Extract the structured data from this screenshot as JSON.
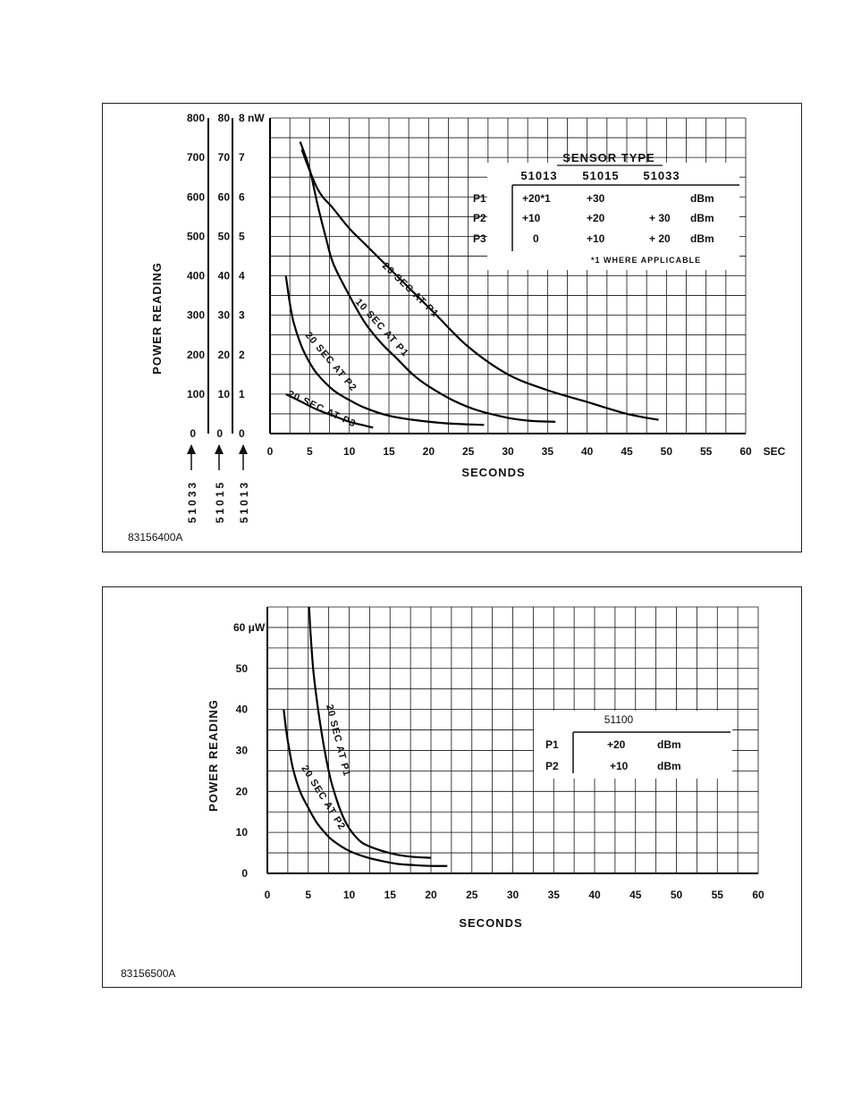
{
  "figures": [
    {
      "figure_id": "83156400A",
      "table": {
        "title": "SENSOR TYPE",
        "columns": [
          "51013",
          "51015",
          "51033"
        ],
        "rows": [
          {
            "label": "P1",
            "values": [
              "+20*1",
              "+30",
              ""
            ],
            "unit": "dBm"
          },
          {
            "label": "P2",
            "values": [
              "+10",
              "+20",
              "+ 30"
            ],
            "unit": "dBm"
          },
          {
            "label": "P3",
            "values": [
              "0",
              "+10",
              "+ 20"
            ],
            "unit": "dBm"
          }
        ],
        "footnote": "*1 WHERE APPLICABLE"
      }
    },
    {
      "figure_id": "83156500A",
      "table": {
        "title": "51100",
        "rows": [
          {
            "label": "P1",
            "value": "+20",
            "unit": "dBm"
          },
          {
            "label": "P2",
            "value": "+10",
            "unit": "dBm"
          }
        ]
      }
    }
  ],
  "chart_data": [
    {
      "type": "line",
      "xlabel": "SECONDS",
      "ylabel": "POWER READING",
      "x_unit_label": "SEC",
      "xlim": [
        0,
        60
      ],
      "ylim": [
        0,
        8
      ],
      "x_ticks": [
        "0",
        "5",
        "10",
        "15",
        "20",
        "25",
        "30",
        "35",
        "40",
        "45",
        "50",
        "55",
        "60"
      ],
      "y_scales": [
        {
          "sensor": "51033",
          "ticks": [
            "0",
            "100",
            "200",
            "300",
            "400",
            "500",
            "600",
            "700",
            "800"
          ]
        },
        {
          "sensor": "51015",
          "ticks": [
            "0",
            "10",
            "20",
            "30",
            "40",
            "50",
            "60",
            "70",
            "80"
          ]
        },
        {
          "sensor": "51013",
          "ticks": [
            "0",
            "1",
            "2",
            "3",
            "4",
            "5",
            "6",
            "7",
            "8 nW"
          ]
        }
      ],
      "grid": true,
      "series": [
        {
          "name": "20 SEC AT P1",
          "x": [
            4,
            6,
            8,
            10,
            12,
            15,
            18,
            21,
            25,
            30,
            35,
            40,
            45,
            49
          ],
          "y": [
            7.2,
            6.2,
            5.7,
            5.2,
            4.8,
            4.2,
            3.6,
            3.0,
            2.2,
            1.5,
            1.1,
            0.8,
            0.5,
            0.35
          ]
        },
        {
          "name": "10 SEC AT P1",
          "x": [
            3.8,
            5,
            6,
            7,
            8,
            10,
            12,
            14,
            16,
            18,
            20,
            23,
            26,
            30,
            33,
            36
          ],
          "y": [
            7.4,
            6.7,
            5.8,
            5.0,
            4.3,
            3.5,
            2.8,
            2.3,
            1.9,
            1.5,
            1.2,
            0.85,
            0.6,
            0.4,
            0.32,
            0.3
          ]
        },
        {
          "name": "20 SEC AT P2",
          "x": [
            2,
            2.5,
            3,
            4,
            5,
            6,
            8,
            10,
            12,
            15,
            18,
            21,
            24,
            27
          ],
          "y": [
            4.0,
            3.3,
            2.8,
            2.2,
            1.8,
            1.5,
            1.1,
            0.85,
            0.65,
            0.45,
            0.35,
            0.28,
            0.24,
            0.22
          ]
        },
        {
          "name": "20 SEC AT P3",
          "x": [
            2,
            4,
            6,
            8,
            10,
            12,
            13
          ],
          "y": [
            1.0,
            0.8,
            0.6,
            0.45,
            0.3,
            0.2,
            0.15
          ]
        }
      ]
    },
    {
      "type": "line",
      "xlabel": "SECONDS",
      "ylabel": "POWER READING",
      "xlim": [
        0,
        60
      ],
      "ylim": [
        0,
        65
      ],
      "x_ticks": [
        "0",
        "5",
        "10",
        "15",
        "20",
        "25",
        "30",
        "35",
        "40",
        "45",
        "50",
        "55",
        "60"
      ],
      "y_ticks": [
        {
          "value": 0,
          "label": "0"
        },
        {
          "value": 10,
          "label": "10"
        },
        {
          "value": 20,
          "label": "20"
        },
        {
          "value": 30,
          "label": "30"
        },
        {
          "value": 40,
          "label": "40"
        },
        {
          "value": 50,
          "label": "50"
        },
        {
          "value": 60,
          "label": "60 μW"
        }
      ],
      "grid": true,
      "series": [
        {
          "name": "20 SEC AT P1",
          "x": [
            5.1,
            5.3,
            5.6,
            6,
            6.5,
            7,
            7.5,
            8,
            9,
            10,
            11,
            12,
            14,
            16,
            18,
            20
          ],
          "y": [
            65,
            58,
            50,
            43,
            36,
            30,
            25,
            21,
            15,
            11,
            8.5,
            7,
            5.5,
            4.5,
            4,
            3.8
          ]
        },
        {
          "name": "20 SEC AT P2",
          "x": [
            2,
            2.3,
            2.7,
            3.2,
            4,
            5,
            6,
            7,
            8,
            10,
            12,
            14,
            16,
            18,
            20,
            22
          ],
          "y": [
            40,
            35,
            30,
            25,
            20,
            16,
            12.5,
            10,
            8,
            5.5,
            4,
            3,
            2.3,
            2,
            1.8,
            1.8
          ]
        }
      ]
    }
  ]
}
